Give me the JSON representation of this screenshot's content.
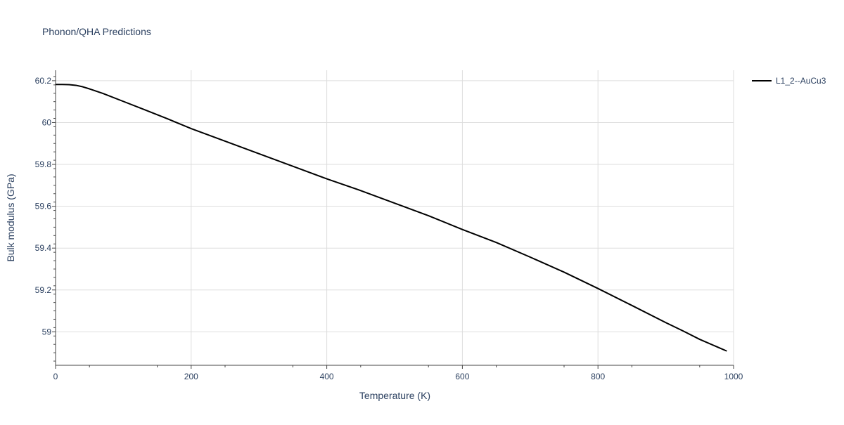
{
  "chart_data": {
    "type": "line",
    "title": "Phonon/QHA Predictions",
    "xlabel": "Temperature (K)",
    "ylabel": "Bulk modulus (GPa)",
    "xlim": [
      0,
      1000
    ],
    "ylim": [
      58.84,
      60.25
    ],
    "xticks": [
      0,
      200,
      400,
      600,
      800,
      1000
    ],
    "xtick_labels": [
      "0",
      "200",
      "400",
      "600",
      "800",
      "1000"
    ],
    "yticks": [
      59.0,
      59.2,
      59.4,
      59.6,
      59.8,
      60.0,
      60.2
    ],
    "ytick_labels": [
      "59",
      "59.2",
      "59.4",
      "59.6",
      "59.8",
      "60",
      "60.2"
    ],
    "grid": true,
    "legend": "top-right outside plot",
    "colors": {
      "series": "#000000",
      "grid": "#dddddd",
      "text": "#2a3f5f",
      "axis": "#444444"
    },
    "series": [
      {
        "name": "L1_2--AuCu3",
        "x": [
          0,
          10,
          20,
          30,
          40,
          50,
          70,
          100,
          130,
          165,
          200,
          250,
          300,
          350,
          400,
          450,
          500,
          550,
          600,
          650,
          700,
          750,
          800,
          850,
          900,
          925,
          950,
          990
        ],
        "y": [
          60.182,
          60.182,
          60.181,
          60.178,
          60.171,
          60.161,
          60.139,
          60.101,
          60.063,
          60.018,
          59.971,
          59.911,
          59.851,
          59.791,
          59.731,
          59.675,
          59.615,
          59.555,
          59.489,
          59.427,
          59.357,
          59.285,
          59.207,
          59.126,
          59.044,
          59.005,
          58.964,
          58.908
        ]
      }
    ]
  }
}
